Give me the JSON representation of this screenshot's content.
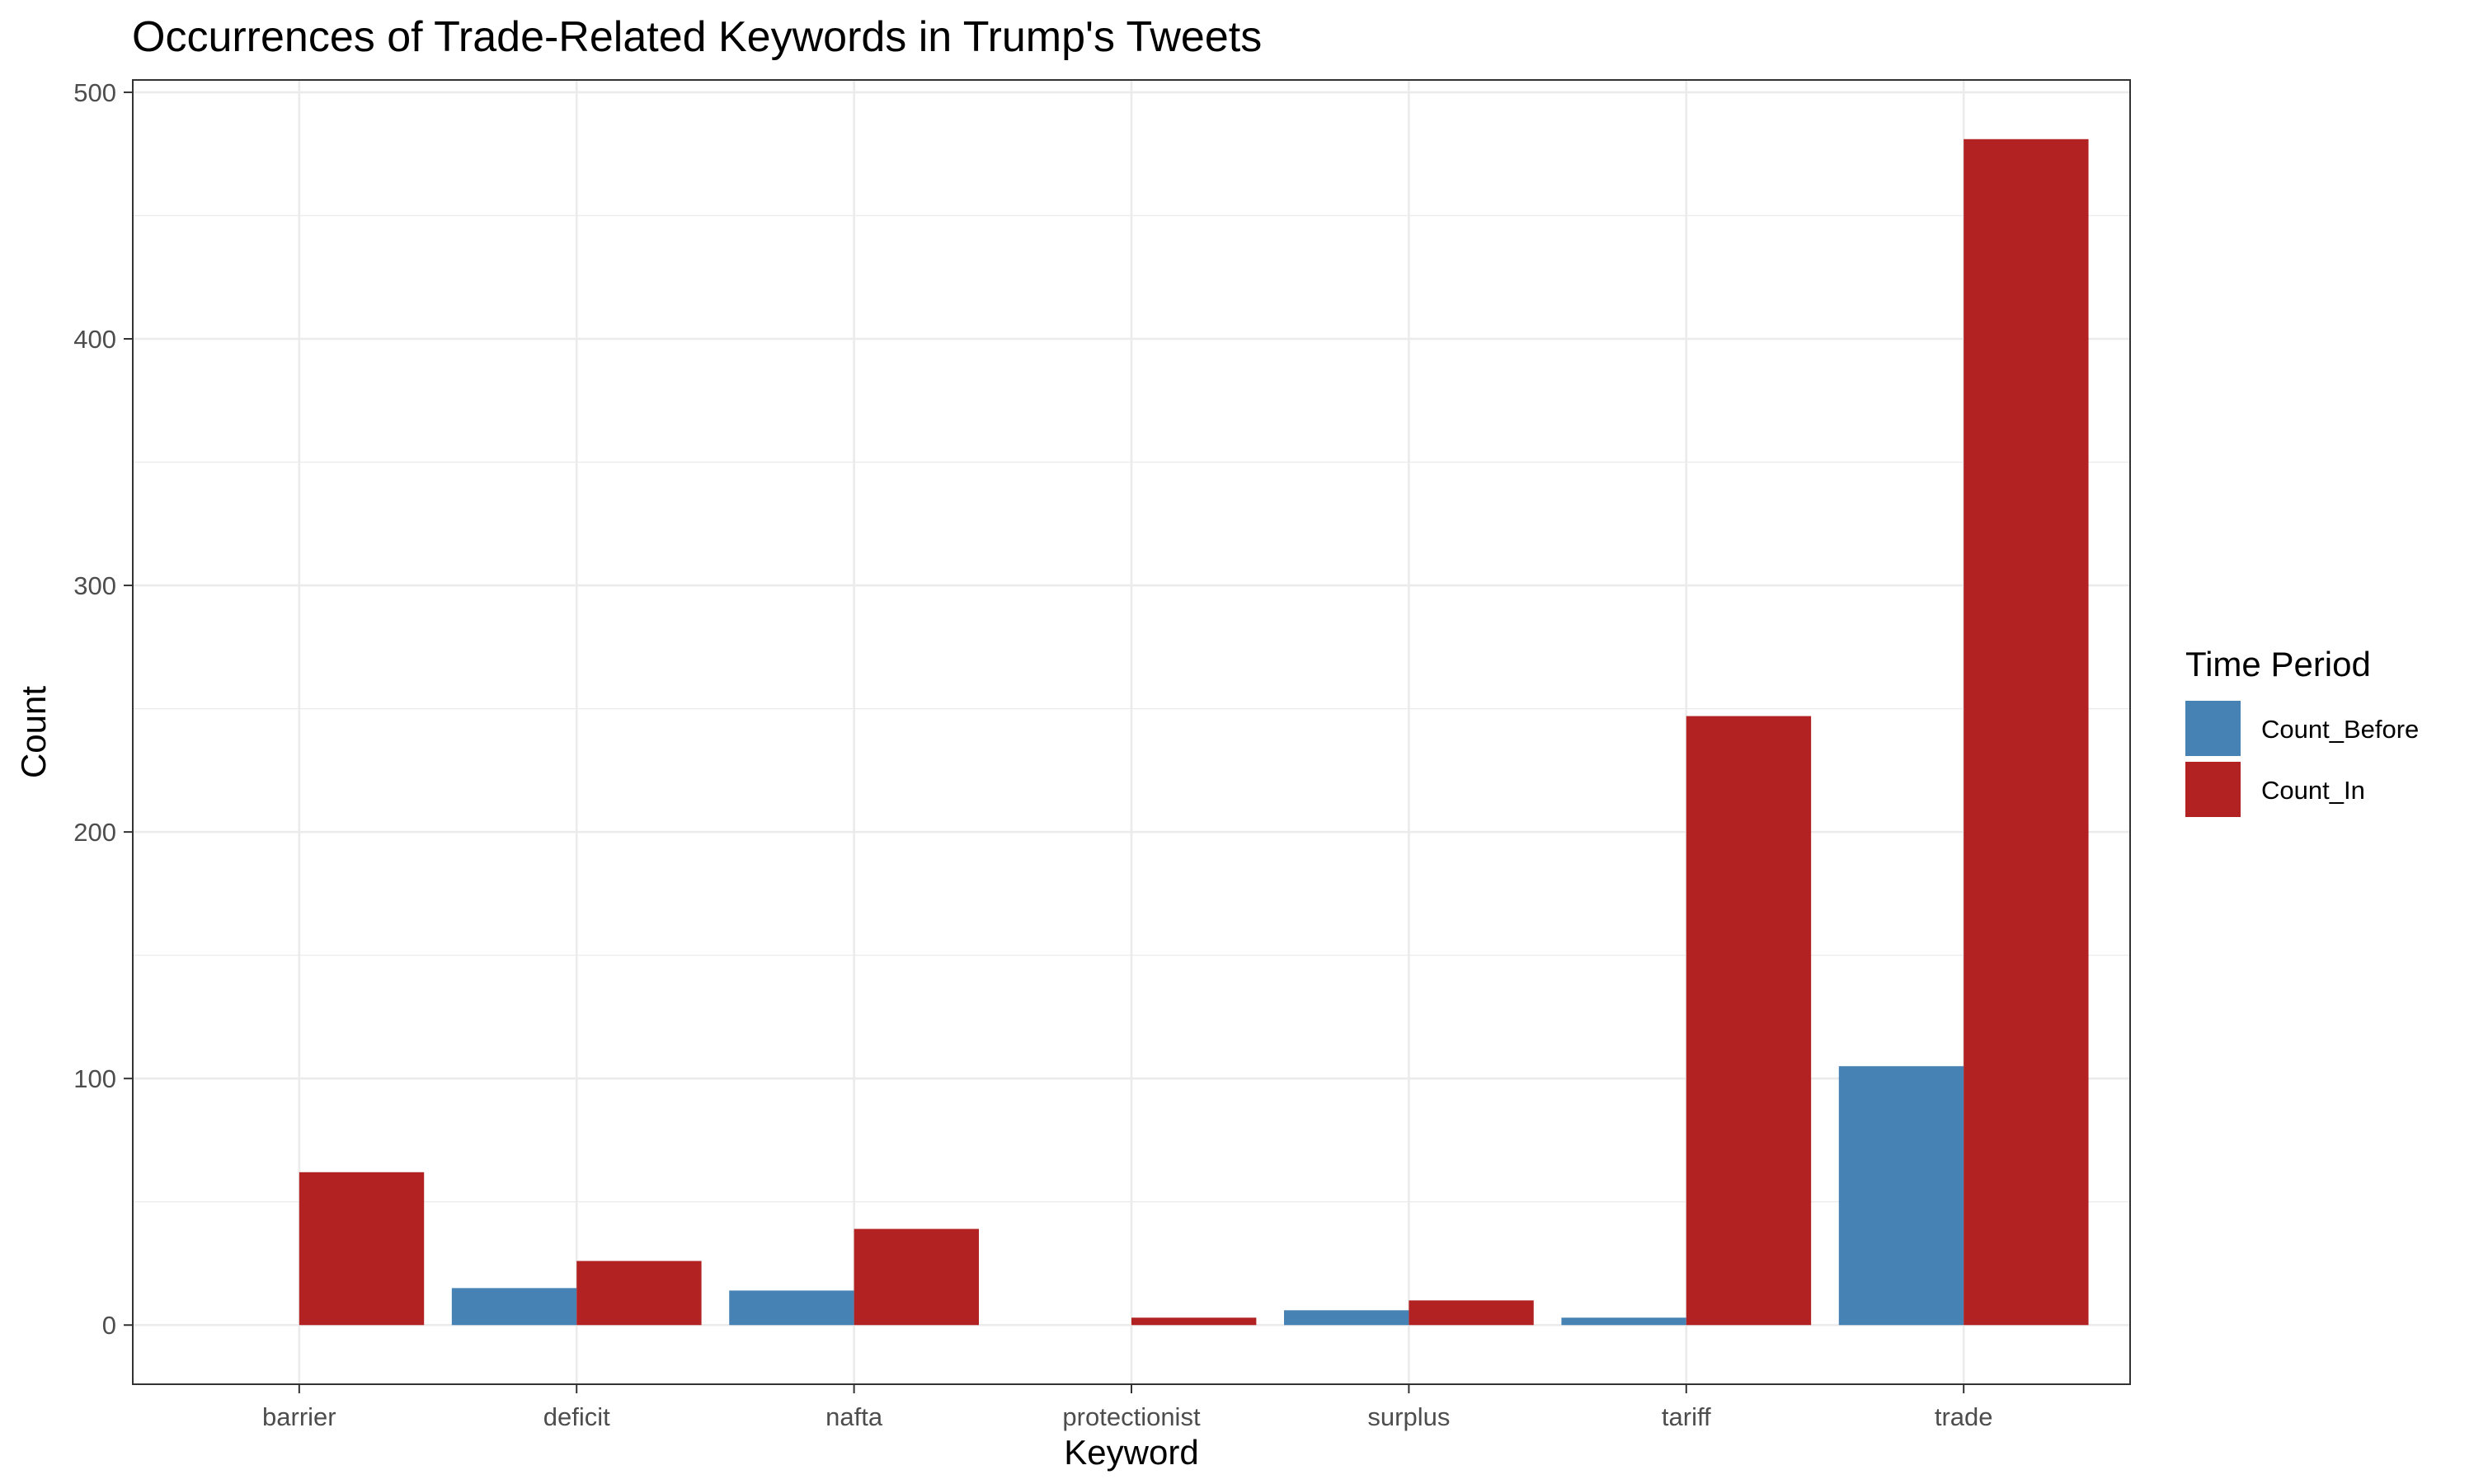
{
  "chart_data": {
    "type": "bar",
    "title": "Occurrences of Trade-Related Keywords in Trump's Tweets",
    "xlabel": "Keyword",
    "ylabel": "Count",
    "categories": [
      "barrier",
      "deficit",
      "nafta",
      "protectionist",
      "surplus",
      "tariff",
      "trade"
    ],
    "series": [
      {
        "name": "Count_Before",
        "color": "#4682B4",
        "values": [
          0,
          15,
          14,
          0,
          6,
          3,
          105
        ]
      },
      {
        "name": "Count_In",
        "color": "#B22222",
        "values": [
          62,
          26,
          39,
          3,
          10,
          247,
          481
        ]
      }
    ],
    "ylim": [
      -24,
      505
    ],
    "yticks": [
      "0",
      "100",
      "200",
      "300",
      "400",
      "500"
    ],
    "grid": true,
    "legend": {
      "title": "Time Period",
      "position": "right"
    }
  }
}
